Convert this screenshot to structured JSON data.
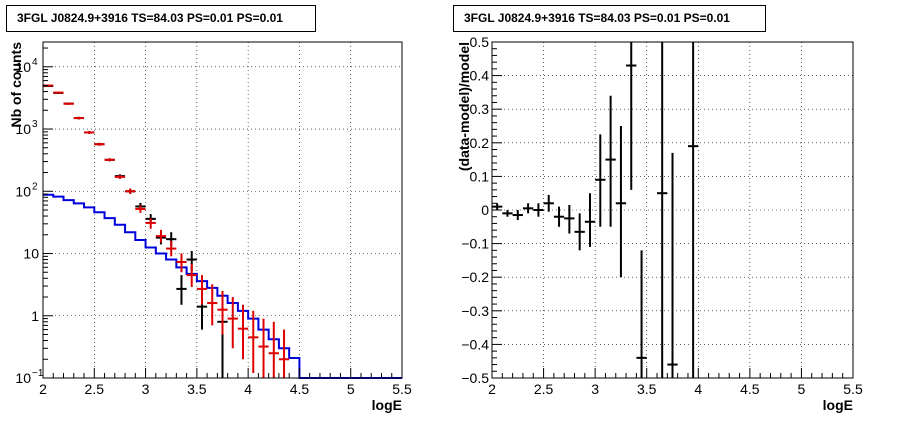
{
  "chart_data": [
    {
      "type": "step",
      "title": "3FGL J0824.9+3916 TS=84.03 PS=0.01 PS=0.01",
      "xlabel": "logE",
      "ylabel": "Nb of counts",
      "xlim": [
        2,
        5.5
      ],
      "ylim": [
        0.1,
        25000
      ],
      "yscale": "log",
      "grid": true,
      "x_ticks": [
        "2",
        "2.5",
        "3",
        "3.5",
        "4",
        "4.5",
        "5",
        "5.5"
      ],
      "y_ticks": [
        {
          "value": 0.1,
          "label": "10",
          "sup": "−1"
        },
        {
          "value": 1,
          "label": "1",
          "sup": ""
        },
        {
          "value": 10,
          "label": "10",
          "sup": ""
        },
        {
          "value": 100,
          "label": "10",
          "sup": "2"
        },
        {
          "value": 1000,
          "label": "10",
          "sup": "3"
        },
        {
          "value": 10000,
          "label": "10",
          "sup": "4"
        }
      ],
      "bin_width": 0.1,
      "series": [
        {
          "color": "#0000dd",
          "style": "step",
          "bin_lows": [
            2.0,
            2.1,
            2.2,
            2.3,
            2.4,
            2.5,
            2.6,
            2.7,
            2.8,
            2.9,
            3.0,
            3.1,
            3.2,
            3.3,
            3.4,
            3.5,
            3.6,
            3.7,
            3.8,
            3.9,
            4.0,
            4.1,
            4.2,
            4.3,
            4.4,
            4.5,
            4.6,
            4.7,
            4.8,
            4.9,
            5.0,
            5.1,
            5.2,
            5.3,
            5.4
          ],
          "values": [
            88,
            82,
            72,
            64,
            55,
            46,
            37,
            29,
            22,
            16.5,
            12.5,
            10,
            8,
            6,
            4.7,
            3.6,
            2.8,
            2.1,
            1.6,
            1.2,
            0.9,
            0.6,
            0.42,
            0.3,
            0.21,
            0.1,
            0.1,
            0.1,
            0.1,
            0.1,
            0.1,
            0.1,
            0.1,
            0.1,
            0.1
          ]
        },
        {
          "color": "#000000",
          "style": "errorbar",
          "points": [
            {
              "x": 2.05,
              "y": 4900,
              "lo": 4760,
              "hi": 5040
            },
            {
              "x": 2.15,
              "y": 3800,
              "lo": 3680,
              "hi": 3920
            },
            {
              "x": 2.25,
              "y": 2560,
              "lo": 2460,
              "hi": 2660
            },
            {
              "x": 2.35,
              "y": 1500,
              "lo": 1430,
              "hi": 1570
            },
            {
              "x": 2.45,
              "y": 880,
              "lo": 835,
              "hi": 925
            },
            {
              "x": 2.55,
              "y": 570,
              "lo": 540,
              "hi": 600
            },
            {
              "x": 2.65,
              "y": 320,
              "lo": 303,
              "hi": 338
            },
            {
              "x": 2.75,
              "y": 175,
              "lo": 163,
              "hi": 187
            },
            {
              "x": 2.85,
              "y": 100,
              "lo": 91,
              "hi": 110
            },
            {
              "x": 2.95,
              "y": 57,
              "lo": 50,
              "hi": 65
            },
            {
              "x": 3.05,
              "y": 36,
              "lo": 30,
              "hi": 43
            },
            {
              "x": 3.15,
              "y": 18,
              "lo": 14,
              "hi": 22
            },
            {
              "x": 3.25,
              "y": 17,
              "lo": 13,
              "hi": 22
            },
            {
              "x": 3.35,
              "y": 2.7,
              "lo": 1.5,
              "hi": 4.5
            },
            {
              "x": 3.45,
              "y": 8,
              "lo": 5.3,
              "hi": 11
            },
            {
              "x": 3.55,
              "y": 1.4,
              "lo": 0.6,
              "hi": 2.8
            },
            {
              "x": 3.75,
              "y": 0.8,
              "lo": 0.1,
              "hi": 2.4
            }
          ]
        },
        {
          "color": "#dd0000",
          "style": "errorbar",
          "points": [
            {
              "x": 2.05,
              "y": 5000,
              "lo": 4860,
              "hi": 5140
            },
            {
              "x": 2.15,
              "y": 3850,
              "lo": 3730,
              "hi": 3970
            },
            {
              "x": 2.25,
              "y": 2550,
              "lo": 2450,
              "hi": 2650
            },
            {
              "x": 2.35,
              "y": 1500,
              "lo": 1430,
              "hi": 1570
            },
            {
              "x": 2.45,
              "y": 880,
              "lo": 835,
              "hi": 925
            },
            {
              "x": 2.55,
              "y": 570,
              "lo": 540,
              "hi": 600
            },
            {
              "x": 2.65,
              "y": 320,
              "lo": 303,
              "hi": 338
            },
            {
              "x": 2.75,
              "y": 170,
              "lo": 158,
              "hi": 182
            },
            {
              "x": 2.85,
              "y": 100,
              "lo": 91,
              "hi": 110
            },
            {
              "x": 2.95,
              "y": 52,
              "lo": 45,
              "hi": 59
            },
            {
              "x": 3.05,
              "y": 31,
              "lo": 25,
              "hi": 37
            },
            {
              "x": 3.15,
              "y": 19,
              "lo": 15,
              "hi": 24
            },
            {
              "x": 3.25,
              "y": 12,
              "lo": 9,
              "hi": 16
            },
            {
              "x": 3.35,
              "y": 7.3,
              "lo": 5,
              "hi": 10
            },
            {
              "x": 3.45,
              "y": 4.5,
              "lo": 2.9,
              "hi": 6.8
            },
            {
              "x": 3.55,
              "y": 2.7,
              "lo": 1.5,
              "hi": 4.5
            },
            {
              "x": 3.65,
              "y": 1.6,
              "lo": 0.7,
              "hi": 3.2
            },
            {
              "x": 3.75,
              "y": 1.25,
              "lo": 0.5,
              "hi": 2.5
            },
            {
              "x": 3.85,
              "y": 0.9,
              "lo": 0.3,
              "hi": 2
            },
            {
              "x": 3.95,
              "y": 0.62,
              "lo": 0.2,
              "hi": 1.5
            },
            {
              "x": 4.05,
              "y": 0.45,
              "lo": 0.12,
              "hi": 1.2
            },
            {
              "x": 4.15,
              "y": 0.32,
              "lo": 0.1,
              "hi": 0.9
            },
            {
              "x": 4.25,
              "y": 0.25,
              "lo": 0.1,
              "hi": 0.8
            },
            {
              "x": 4.35,
              "y": 0.2,
              "lo": 0.1,
              "hi": 0.6
            }
          ]
        }
      ]
    },
    {
      "type": "errorbar",
      "title": "3FGL J0824.9+3916 TS=84.03 PS=0.01 PS=0.01",
      "xlabel": "logE",
      "ylabel": "(data-model)/model",
      "xlim": [
        2,
        5.5
      ],
      "ylim": [
        -0.5,
        0.5
      ],
      "grid": true,
      "x_ticks": [
        "2",
        "2.5",
        "3",
        "3.5",
        "4",
        "4.5",
        "5",
        "5.5"
      ],
      "y_ticks": [
        "−0.5",
        "−0.4",
        "−0.3",
        "−0.2",
        "−0.1",
        "0",
        "0.1",
        "0.2",
        "0.3",
        "0.4",
        "0.5"
      ],
      "series": [
        {
          "color": "#000000",
          "points": [
            {
              "x": 2.05,
              "y": 0.01,
              "lo": 0.0,
              "hi": 0.02
            },
            {
              "x": 2.15,
              "y": -0.01,
              "lo": -0.02,
              "hi": 0.0
            },
            {
              "x": 2.25,
              "y": -0.015,
              "lo": -0.03,
              "hi": 0.0
            },
            {
              "x": 2.35,
              "y": 0.005,
              "lo": -0.01,
              "hi": 0.02
            },
            {
              "x": 2.45,
              "y": 0.0,
              "lo": -0.02,
              "hi": 0.02
            },
            {
              "x": 2.55,
              "y": 0.02,
              "lo": -0.005,
              "hi": 0.045
            },
            {
              "x": 2.65,
              "y": -0.02,
              "lo": -0.05,
              "hi": 0.01
            },
            {
              "x": 2.75,
              "y": -0.025,
              "lo": -0.07,
              "hi": 0.015
            },
            {
              "x": 2.85,
              "y": -0.065,
              "lo": -0.12,
              "hi": -0.01
            },
            {
              "x": 2.95,
              "y": -0.035,
              "lo": -0.11,
              "hi": 0.05
            },
            {
              "x": 3.05,
              "y": 0.09,
              "lo": -0.05,
              "hi": 0.225
            },
            {
              "x": 3.15,
              "y": 0.15,
              "lo": -0.05,
              "hi": 0.34
            },
            {
              "x": 3.25,
              "y": 0.02,
              "lo": -0.2,
              "hi": 0.25
            },
            {
              "x": 3.35,
              "y": 0.43,
              "lo": 0.06,
              "hi": 0.8
            },
            {
              "x": 3.45,
              "y": -0.44,
              "lo": -0.5,
              "hi": -0.12
            },
            {
              "x": 3.65,
              "y": 0.05,
              "lo": -0.5,
              "hi": 0.6
            },
            {
              "x": 3.75,
              "y": -0.46,
              "lo": -0.5,
              "hi": 0.17
            },
            {
              "x": 3.95,
              "y": 0.19,
              "lo": -0.5,
              "hi": 0.6
            }
          ]
        }
      ]
    }
  ]
}
